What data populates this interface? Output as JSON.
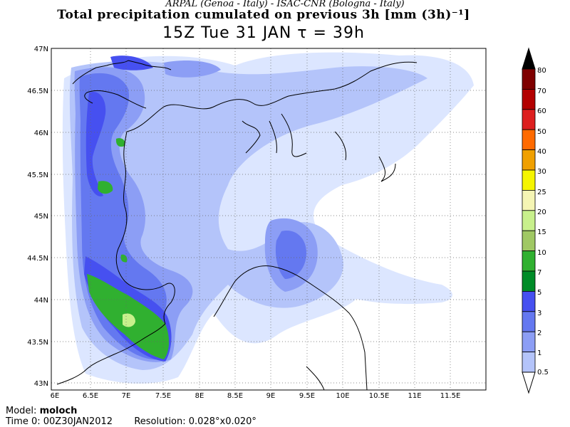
{
  "header": {
    "institutions": "ARPAL (Genoa - Italy)  -  ISAC-CNR (Bologna - Italy)",
    "title": "Total precipitation cumulated on previous 3h [mm (3h)⁻¹]",
    "valid_time": "15Z Tue 31 JAN  τ = 39h"
  },
  "map": {
    "lon_labels": [
      "6E",
      "6.5E",
      "7E",
      "7.5E",
      "8E",
      "8.5E",
      "9E",
      "9.5E",
      "10E",
      "10.5E",
      "11E",
      "11.5E"
    ],
    "lat_labels": [
      "47N",
      "46.5N",
      "46N",
      "45.5N",
      "45N",
      "44.5N",
      "44N",
      "43.5N",
      "43N"
    ],
    "grid": "dotted",
    "coastline_color": "#000000"
  },
  "colorbar": {
    "labels": [
      "80",
      "70",
      "60",
      "50",
      "40",
      "30",
      "25",
      "20",
      "15",
      "10",
      "7",
      "5",
      "3",
      "2",
      "1",
      "0.5"
    ],
    "colors": [
      "#000000",
      "#7f0000",
      "#b30000",
      "#dd1f1f",
      "#ff6a00",
      "#f0a000",
      "#f5f500",
      "#f5f5b4",
      "#c8f08c",
      "#a0c864",
      "#30b030",
      "#008c28",
      "#4650f0",
      "#6478f0",
      "#8c9ef5",
      "#b4c4fa",
      "#dce6ff"
    ]
  },
  "footer": {
    "model_label": "Model:",
    "model_value": "moloch",
    "time0_label": "Time 0:",
    "time0_value": "00Z30JAN2012",
    "resolution_label": "Resolution:",
    "resolution_value": "0.028°x0.020°"
  }
}
